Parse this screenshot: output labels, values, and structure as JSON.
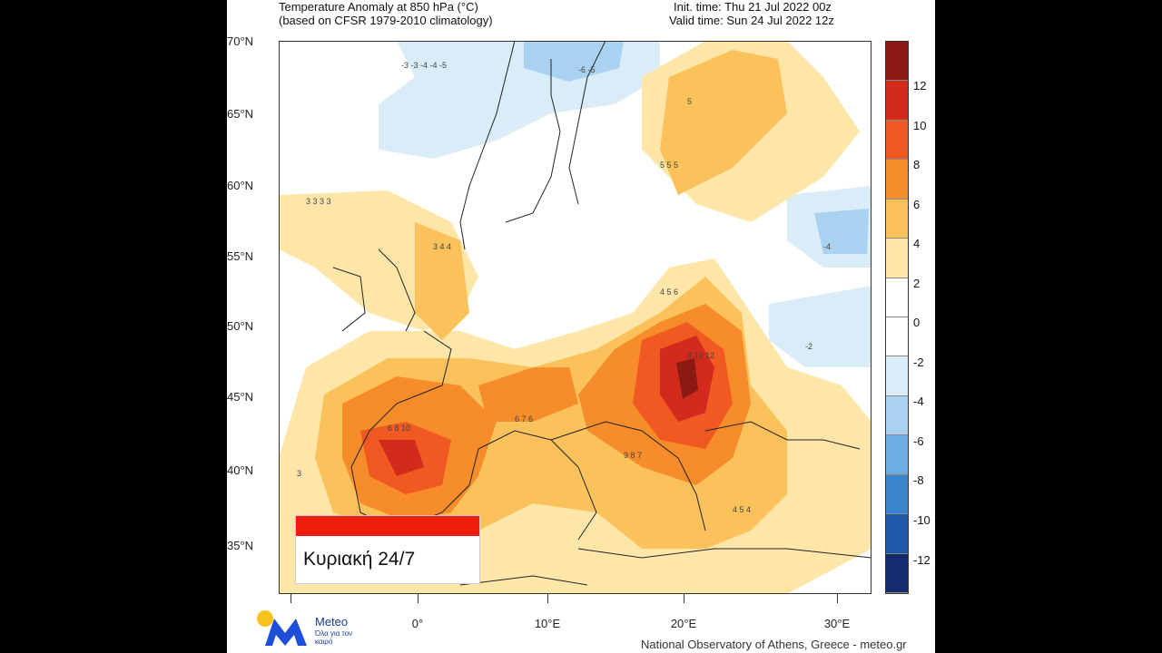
{
  "header": {
    "title_line1": "Temperature Anomaly at 850 hPa (°C)",
    "title_line2": "(based on CFSR 1979-2010 climatology)",
    "init_time": "Init. time: Thu 21 Jul 2022 00z",
    "valid_time": "Valid time: Sun 24 Jul 2022 12z"
  },
  "axes": {
    "lat_labels": [
      "70°N",
      "65°N",
      "60°N",
      "55°N",
      "50°N",
      "45°N",
      "40°N",
      "35°N"
    ],
    "lon_labels": [
      "0°",
      "10°E",
      "20°E",
      "30°E"
    ]
  },
  "colorbar": {
    "labels": [
      "12",
      "10",
      "8",
      "6",
      "4",
      "2",
      "0",
      "-2",
      "-4",
      "-6",
      "-8",
      "-10",
      "-12"
    ],
    "colors": [
      "#8b1a12",
      "#d42a1c",
      "#f05a22",
      "#f78c2a",
      "#fbc25c",
      "#fde6a8",
      "#ffffff",
      "#ffffff",
      "#d9ecf8",
      "#a9d2f0",
      "#6aaee2",
      "#3a84cc",
      "#1f5aa8",
      "#142c6e"
    ]
  },
  "overlay": {
    "day_label": "Κυριακή 24/7"
  },
  "logo": {
    "brand": "Meteo",
    "tagline": "Όλα για τον καιρό",
    "colors": {
      "sun": "#f8c21c",
      "mark": "#1f4fd8"
    }
  },
  "footer": {
    "credit": "National Observatory of Athens, Greece - meteo.gr"
  }
}
